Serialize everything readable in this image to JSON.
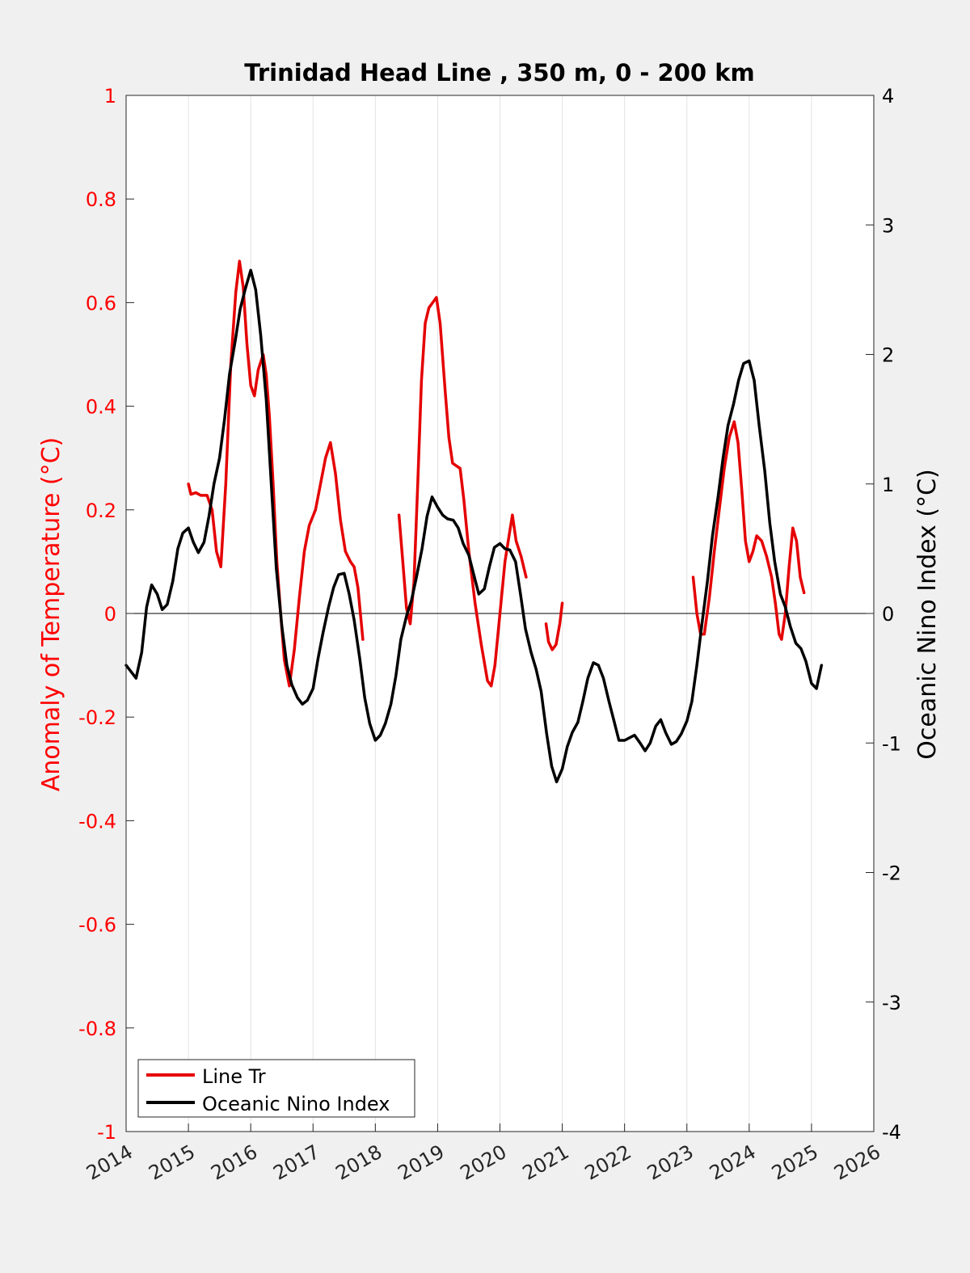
{
  "chart_data": {
    "type": "line",
    "title": "Trinidad Head Line , 350 m, 0 - 200 km",
    "xlabel": "",
    "ylabel_left": "Anomaly of Temperature (°C)",
    "ylabel_right": "Oceanic Nino Index (°C)",
    "xlim": [
      2014,
      2026
    ],
    "ylim_left": [
      -1,
      1
    ],
    "ylim_right": [
      -4,
      4
    ],
    "x_ticks": [
      "2014",
      "2015",
      "2016",
      "2017",
      "2018",
      "2019",
      "2020",
      "2021",
      "2022",
      "2023",
      "2024",
      "2025",
      "2026"
    ],
    "y_ticks_left": [
      "1",
      "0.8",
      "0.6",
      "0.4",
      "0.2",
      "0",
      "-0.2",
      "-0.4",
      "-0.6",
      "-0.8",
      "-1"
    ],
    "y_ticks_right": [
      "4",
      "3",
      "2",
      "1",
      "0",
      "-1",
      "-2",
      "-3",
      "-4"
    ],
    "grid": "vertical",
    "legend_position": "bottom-left",
    "colors": {
      "left_axis": "#ff0000",
      "line_tr": "#e50000",
      "oni": "#000000",
      "zero_line": "#000000"
    },
    "series": [
      {
        "name": "Line Tr",
        "axis": "left",
        "segments": [
          [
            [
              2015.0,
              0.25
            ],
            [
              2015.04,
              0.23
            ],
            [
              2015.12,
              0.233
            ],
            [
              2015.2,
              0.228
            ],
            [
              2015.3,
              0.228
            ],
            [
              2015.38,
              0.2
            ],
            [
              2015.45,
              0.12
            ],
            [
              2015.52,
              0.09
            ],
            [
              2015.6,
              0.25
            ],
            [
              2015.68,
              0.48
            ],
            [
              2015.76,
              0.62
            ],
            [
              2015.82,
              0.68
            ],
            [
              2015.88,
              0.63
            ],
            [
              2015.94,
              0.52
            ],
            [
              2016.0,
              0.44
            ],
            [
              2016.06,
              0.42
            ],
            [
              2016.12,
              0.47
            ],
            [
              2016.2,
              0.5
            ],
            [
              2016.25,
              0.46
            ],
            [
              2016.3,
              0.38
            ],
            [
              2016.36,
              0.25
            ],
            [
              2016.42,
              0.1
            ],
            [
              2016.48,
              0.0
            ],
            [
              2016.54,
              -0.09
            ],
            [
              2016.62,
              -0.14
            ],
            [
              2016.7,
              -0.07
            ],
            [
              2016.78,
              0.03
            ],
            [
              2016.86,
              0.12
            ],
            [
              2016.94,
              0.17
            ],
            [
              2017.04,
              0.2
            ],
            [
              2017.12,
              0.25
            ],
            [
              2017.2,
              0.3
            ],
            [
              2017.28,
              0.33
            ],
            [
              2017.36,
              0.27
            ],
            [
              2017.44,
              0.18
            ],
            [
              2017.52,
              0.12
            ],
            [
              2017.6,
              0.1
            ],
            [
              2017.66,
              0.09
            ],
            [
              2017.72,
              0.05
            ],
            [
              2017.8,
              -0.05
            ]
          ],
          [
            [
              2018.38,
              0.19
            ],
            [
              2018.44,
              0.1
            ],
            [
              2018.5,
              0.01
            ],
            [
              2018.56,
              -0.02
            ],
            [
              2018.62,
              0.06
            ],
            [
              2018.68,
              0.25
            ],
            [
              2018.74,
              0.45
            ],
            [
              2018.8,
              0.56
            ],
            [
              2018.86,
              0.59
            ],
            [
              2018.92,
              0.6
            ],
            [
              2018.98,
              0.61
            ],
            [
              2019.04,
              0.56
            ],
            [
              2019.12,
              0.43
            ],
            [
              2019.18,
              0.34
            ],
            [
              2019.24,
              0.29
            ],
            [
              2019.3,
              0.285
            ],
            [
              2019.36,
              0.28
            ],
            [
              2019.42,
              0.22
            ],
            [
              2019.5,
              0.12
            ],
            [
              2019.6,
              0.02
            ],
            [
              2019.7,
              -0.06
            ],
            [
              2019.8,
              -0.13
            ],
            [
              2019.86,
              -0.14
            ],
            [
              2019.92,
              -0.1
            ],
            [
              2020.0,
              0.0
            ],
            [
              2020.08,
              0.1
            ],
            [
              2020.16,
              0.16
            ],
            [
              2020.2,
              0.19
            ],
            [
              2020.26,
              0.14
            ],
            [
              2020.34,
              0.11
            ],
            [
              2020.42,
              0.07
            ]
          ],
          [
            [
              2020.74,
              -0.02
            ],
            [
              2020.78,
              -0.055
            ],
            [
              2020.84,
              -0.07
            ],
            [
              2020.9,
              -0.06
            ],
            [
              2020.96,
              -0.02
            ],
            [
              2021.0,
              0.02
            ]
          ],
          [
            [
              2023.1,
              0.07
            ],
            [
              2023.16,
              0.0
            ],
            [
              2023.22,
              -0.04
            ],
            [
              2023.28,
              -0.04
            ],
            [
              2023.36,
              0.03
            ],
            [
              2023.44,
              0.12
            ],
            [
              2023.52,
              0.2
            ],
            [
              2023.6,
              0.28
            ],
            [
              2023.68,
              0.34
            ],
            [
              2023.76,
              0.37
            ],
            [
              2023.82,
              0.33
            ],
            [
              2023.88,
              0.24
            ],
            [
              2023.94,
              0.14
            ],
            [
              2024.0,
              0.1
            ],
            [
              2024.06,
              0.12
            ],
            [
              2024.12,
              0.15
            ],
            [
              2024.2,
              0.14
            ],
            [
              2024.28,
              0.11
            ],
            [
              2024.36,
              0.07
            ],
            [
              2024.42,
              0.02
            ],
            [
              2024.48,
              -0.04
            ],
            [
              2024.52,
              -0.05
            ],
            [
              2024.58,
              0.0
            ],
            [
              2024.64,
              0.09
            ],
            [
              2024.7,
              0.165
            ],
            [
              2024.76,
              0.14
            ],
            [
              2024.82,
              0.07
            ],
            [
              2024.88,
              0.04
            ]
          ]
        ]
      },
      {
        "name": "Oceanic Nino Index",
        "axis": "right",
        "segments": [
          [
            [
              2014.0,
              -0.4
            ],
            [
              2014.08,
              -0.45
            ],
            [
              2014.16,
              -0.5
            ],
            [
              2014.25,
              -0.3
            ],
            [
              2014.33,
              0.05
            ],
            [
              2014.41,
              0.22
            ],
            [
              2014.5,
              0.15
            ],
            [
              2014.58,
              0.03
            ],
            [
              2014.66,
              0.07
            ],
            [
              2014.75,
              0.25
            ],
            [
              2014.83,
              0.5
            ],
            [
              2014.91,
              0.62
            ],
            [
              2015.0,
              0.66
            ],
            [
              2015.08,
              0.55
            ],
            [
              2015.16,
              0.47
            ],
            [
              2015.25,
              0.55
            ],
            [
              2015.33,
              0.75
            ],
            [
              2015.41,
              1.0
            ],
            [
              2015.5,
              1.2
            ],
            [
              2015.58,
              1.5
            ],
            [
              2015.66,
              1.85
            ],
            [
              2015.75,
              2.1
            ],
            [
              2015.83,
              2.35
            ],
            [
              2015.91,
              2.5
            ],
            [
              2016.0,
              2.65
            ],
            [
              2016.08,
              2.5
            ],
            [
              2016.16,
              2.15
            ],
            [
              2016.25,
              1.65
            ],
            [
              2016.33,
              1.0
            ],
            [
              2016.41,
              0.35
            ],
            [
              2016.5,
              -0.1
            ],
            [
              2016.58,
              -0.4
            ],
            [
              2016.66,
              -0.55
            ],
            [
              2016.75,
              -0.65
            ],
            [
              2016.83,
              -0.7
            ],
            [
              2016.91,
              -0.67
            ],
            [
              2017.0,
              -0.58
            ],
            [
              2017.08,
              -0.35
            ],
            [
              2017.16,
              -0.15
            ],
            [
              2017.25,
              0.05
            ],
            [
              2017.33,
              0.2
            ],
            [
              2017.41,
              0.3
            ],
            [
              2017.5,
              0.31
            ],
            [
              2017.58,
              0.15
            ],
            [
              2017.66,
              -0.05
            ],
            [
              2017.75,
              -0.35
            ],
            [
              2017.83,
              -0.65
            ],
            [
              2017.91,
              -0.85
            ],
            [
              2018.0,
              -0.98
            ],
            [
              2018.08,
              -0.94
            ],
            [
              2018.16,
              -0.85
            ],
            [
              2018.25,
              -0.7
            ],
            [
              2018.33,
              -0.48
            ],
            [
              2018.41,
              -0.2
            ],
            [
              2018.5,
              -0.02
            ],
            [
              2018.58,
              0.1
            ],
            [
              2018.66,
              0.28
            ],
            [
              2018.75,
              0.5
            ],
            [
              2018.83,
              0.75
            ],
            [
              2018.91,
              0.9
            ],
            [
              2019.0,
              0.82
            ],
            [
              2019.08,
              0.76
            ],
            [
              2019.16,
              0.73
            ],
            [
              2019.25,
              0.72
            ],
            [
              2019.33,
              0.66
            ],
            [
              2019.41,
              0.54
            ],
            [
              2019.5,
              0.45
            ],
            [
              2019.58,
              0.3
            ],
            [
              2019.66,
              0.15
            ],
            [
              2019.75,
              0.19
            ],
            [
              2019.83,
              0.36
            ],
            [
              2019.91,
              0.51
            ],
            [
              2020.0,
              0.54
            ],
            [
              2020.08,
              0.5
            ],
            [
              2020.16,
              0.49
            ],
            [
              2020.25,
              0.4
            ],
            [
              2020.33,
              0.15
            ],
            [
              2020.41,
              -0.12
            ],
            [
              2020.5,
              -0.3
            ],
            [
              2020.58,
              -0.43
            ],
            [
              2020.66,
              -0.6
            ],
            [
              2020.75,
              -0.93
            ],
            [
              2020.83,
              -1.18
            ],
            [
              2020.91,
              -1.3
            ],
            [
              2021.0,
              -1.2
            ],
            [
              2021.08,
              -1.03
            ],
            [
              2021.16,
              -0.92
            ],
            [
              2021.25,
              -0.84
            ],
            [
              2021.33,
              -0.68
            ],
            [
              2021.41,
              -0.5
            ],
            [
              2021.5,
              -0.38
            ],
            [
              2021.58,
              -0.4
            ],
            [
              2021.66,
              -0.5
            ],
            [
              2021.75,
              -0.68
            ],
            [
              2021.83,
              -0.83
            ],
            [
              2021.91,
              -0.98
            ],
            [
              2022.0,
              -0.98
            ],
            [
              2022.08,
              -0.96
            ],
            [
              2022.16,
              -0.94
            ],
            [
              2022.25,
              -1.0
            ],
            [
              2022.33,
              -1.06
            ],
            [
              2022.41,
              -1.0
            ],
            [
              2022.5,
              -0.87
            ],
            [
              2022.58,
              -0.82
            ],
            [
              2022.66,
              -0.92
            ],
            [
              2022.75,
              -1.01
            ],
            [
              2022.83,
              -0.99
            ],
            [
              2022.91,
              -0.93
            ],
            [
              2023.0,
              -0.83
            ],
            [
              2023.08,
              -0.68
            ],
            [
              2023.16,
              -0.4
            ],
            [
              2023.25,
              -0.05
            ],
            [
              2023.33,
              0.25
            ],
            [
              2023.41,
              0.6
            ],
            [
              2023.5,
              0.9
            ],
            [
              2023.58,
              1.2
            ],
            [
              2023.66,
              1.45
            ],
            [
              2023.75,
              1.62
            ],
            [
              2023.83,
              1.8
            ],
            [
              2023.91,
              1.93
            ],
            [
              2024.0,
              1.95
            ],
            [
              2024.08,
              1.8
            ],
            [
              2024.16,
              1.45
            ],
            [
              2024.25,
              1.1
            ],
            [
              2024.33,
              0.7
            ],
            [
              2024.41,
              0.4
            ],
            [
              2024.5,
              0.15
            ],
            [
              2024.58,
              0.05
            ],
            [
              2024.66,
              -0.1
            ],
            [
              2024.75,
              -0.23
            ],
            [
              2024.83,
              -0.27
            ],
            [
              2024.91,
              -0.37
            ],
            [
              2025.0,
              -0.54
            ],
            [
              2025.08,
              -0.58
            ],
            [
              2025.16,
              -0.4
            ]
          ]
        ]
      }
    ]
  },
  "legend": {
    "line_tr_label": "Line Tr",
    "oni_label": "Oceanic Nino Index"
  }
}
